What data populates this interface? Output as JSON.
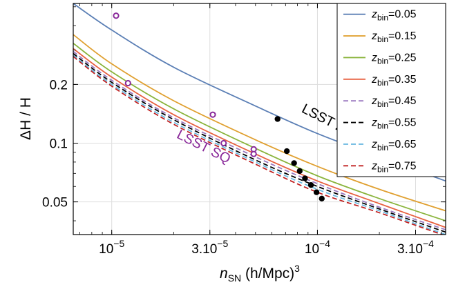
{
  "chart_data": {
    "type": "line",
    "xlabel": {
      "base": "n",
      "sub": "SN",
      "rest": " (h/Mpc)",
      "sup": "3"
    },
    "ylabel": "ΔH / H",
    "x_scale": "log",
    "y_scale": "log",
    "xlim": [
      6.5e-06,
      0.00042
    ],
    "ylim": [
      0.034,
      0.52
    ],
    "grid": true,
    "x_ticks": [
      {
        "value": 1e-05,
        "label": "10",
        "sup": "−5"
      },
      {
        "value": 3e-05,
        "label": "3.10",
        "sup": "−5"
      },
      {
        "value": 0.0001,
        "label": "10",
        "sup": "−4"
      },
      {
        "value": 0.0003,
        "label": "3.10",
        "sup": "−4"
      }
    ],
    "y_ticks": [
      {
        "value": 0.05,
        "label": "0.05"
      },
      {
        "value": 0.1,
        "label": "0.1"
      },
      {
        "value": 0.2,
        "label": "0.2"
      }
    ],
    "legend_position": "top-right",
    "series": [
      {
        "name": "z_bin=0.05",
        "label_sub": "bin",
        "label_val": "=0.05",
        "color": "#5b7fb5",
        "dash": "solid",
        "x": [
          6.5e-06,
          1e-05,
          2e-05,
          5e-05,
          0.0001,
          0.0002,
          0.00042
        ],
        "y": [
          0.52,
          0.38,
          0.245,
          0.155,
          0.112,
          0.085,
          0.064
        ]
      },
      {
        "name": "z_bin=0.15",
        "label_sub": "bin",
        "label_val": "=0.15",
        "color": "#e0a030",
        "dash": "solid",
        "x": [
          6.5e-06,
          1e-05,
          2e-05,
          5e-05,
          0.0001,
          0.0002,
          0.00042
        ],
        "y": [
          0.36,
          0.255,
          0.165,
          0.104,
          0.076,
          0.058,
          0.045
        ]
      },
      {
        "name": "z_bin=0.25",
        "label_sub": "bin",
        "label_val": "=0.25",
        "color": "#8ab43c",
        "dash": "solid",
        "x": [
          6.5e-06,
          1e-05,
          2e-05,
          5e-05,
          0.0001,
          0.0002,
          0.00042
        ],
        "y": [
          0.325,
          0.232,
          0.15,
          0.094,
          0.068,
          0.052,
          0.04
        ]
      },
      {
        "name": "z_bin=0.35",
        "label_sub": "bin",
        "label_val": "=0.35",
        "color": "#e86040",
        "dash": "solid",
        "x": [
          6.5e-06,
          1e-05,
          2e-05,
          5e-05,
          0.0001,
          0.0002,
          0.00042
        ],
        "y": [
          0.305,
          0.218,
          0.14,
          0.088,
          0.064,
          0.049,
          0.037
        ]
      },
      {
        "name": "z_bin=0.45",
        "label_sub": "bin",
        "label_val": "=0.45",
        "color": "#9a78c0",
        "dash": "dashed",
        "x": [
          6.5e-06,
          1e-05,
          2e-05,
          5e-05,
          0.0001,
          0.0002,
          0.00042
        ],
        "y": [
          0.295,
          0.21,
          0.135,
          0.085,
          0.062,
          0.047,
          0.036
        ]
      },
      {
        "name": "z_bin=0.55",
        "label_sub": "bin",
        "label_val": "=0.55",
        "color": "#000000",
        "dash": "dashed",
        "x": [
          6.5e-06,
          1e-05,
          2e-05,
          5e-05,
          0.0001,
          0.0002,
          0.00042
        ],
        "y": [
          0.288,
          0.205,
          0.132,
          0.082,
          0.06,
          0.046,
          0.035
        ]
      },
      {
        "name": "z_bin=0.65",
        "label_sub": "bin",
        "label_val": "=0.65",
        "color": "#6ab8e0",
        "dash": "dashed",
        "x": [
          6.5e-06,
          1e-05,
          2e-05,
          5e-05,
          0.0001,
          0.0002,
          0.00042
        ],
        "y": [
          0.282,
          0.2,
          0.128,
          0.08,
          0.058,
          0.045,
          0.034
        ]
      },
      {
        "name": "z_bin=0.75",
        "label_sub": "bin",
        "label_val": "=0.75",
        "color": "#c02020",
        "dash": "dashed",
        "x": [
          6.5e-06,
          1e-05,
          2e-05,
          5e-05,
          0.0001,
          0.0002,
          0.00042
        ],
        "y": [
          0.278,
          0.196,
          0.125,
          0.078,
          0.056,
          0.044,
          0.0335
        ]
      }
    ],
    "points_open": {
      "color": "#8a2a9a",
      "x": [
        1.05e-05,
        1.2e-05,
        3.1e-05,
        3.5e-05,
        4.9e-05,
        4.9e-05
      ],
      "y": [
        0.45,
        0.203,
        0.14,
        0.1,
        0.093,
        0.088
      ]
    },
    "points_filled": {
      "color": "#000000",
      "x": [
        6.4e-05,
        7.1e-05,
        7.7e-05,
        8.2e-05,
        8.7e-05,
        9.3e-05,
        9.9e-05,
        0.000105
      ],
      "y": [
        0.133,
        0.091,
        0.079,
        0.072,
        0.066,
        0.061,
        0.056,
        0.052
      ]
    },
    "annotations": [
      {
        "text": "LSST 20%",
        "color": "#000000",
        "x": 8.3e-05,
        "y": 0.145,
        "angle": 27
      },
      {
        "text": "LSST SQ",
        "color": "#8a2a9a",
        "x": 2.05e-05,
        "y": 0.107,
        "angle": 27
      }
    ],
    "legend_text_base": "z"
  }
}
